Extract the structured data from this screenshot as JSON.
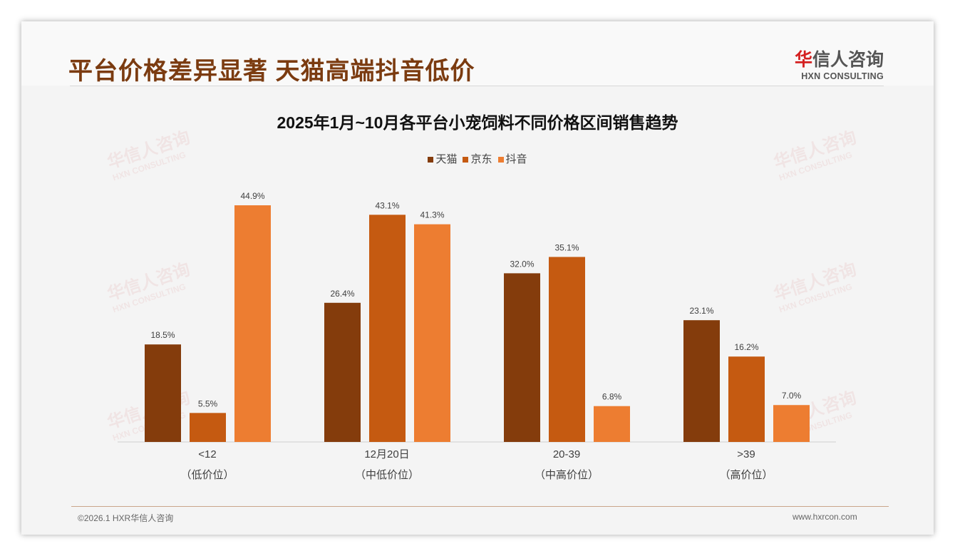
{
  "header": {
    "title": "平台价格差异显著 天猫高端抖音低价",
    "logo_cn_red": "华",
    "logo_cn": "信人咨询",
    "logo_en": "HXN CONSULTING"
  },
  "footer": {
    "left": "©2026.1 HXR华信人咨询",
    "right": "www.hxrcon.com"
  },
  "chart_data": {
    "type": "bar",
    "title": "2025年1月~10月各平台小宠饲料不同价格区间销售趋势",
    "categories": [
      "<12",
      "12月20日",
      "20-39",
      ">39"
    ],
    "sublabels": [
      "（低价位）",
      "（中低价位）",
      "（中高价位）",
      "（高价位）"
    ],
    "series": [
      {
        "name": "天猫",
        "color": "#843c0c",
        "values": [
          18.5,
          26.4,
          32.0,
          23.1
        ]
      },
      {
        "name": "京东",
        "color": "#c55a11",
        "values": [
          5.5,
          43.1,
          35.1,
          16.2
        ]
      },
      {
        "name": "抖音",
        "color": "#ed7d31",
        "values": [
          44.9,
          41.3,
          6.8,
          7.0
        ]
      }
    ],
    "unit": "%",
    "ylim": [
      0,
      50
    ],
    "grid": false,
    "legend_position": "top"
  }
}
